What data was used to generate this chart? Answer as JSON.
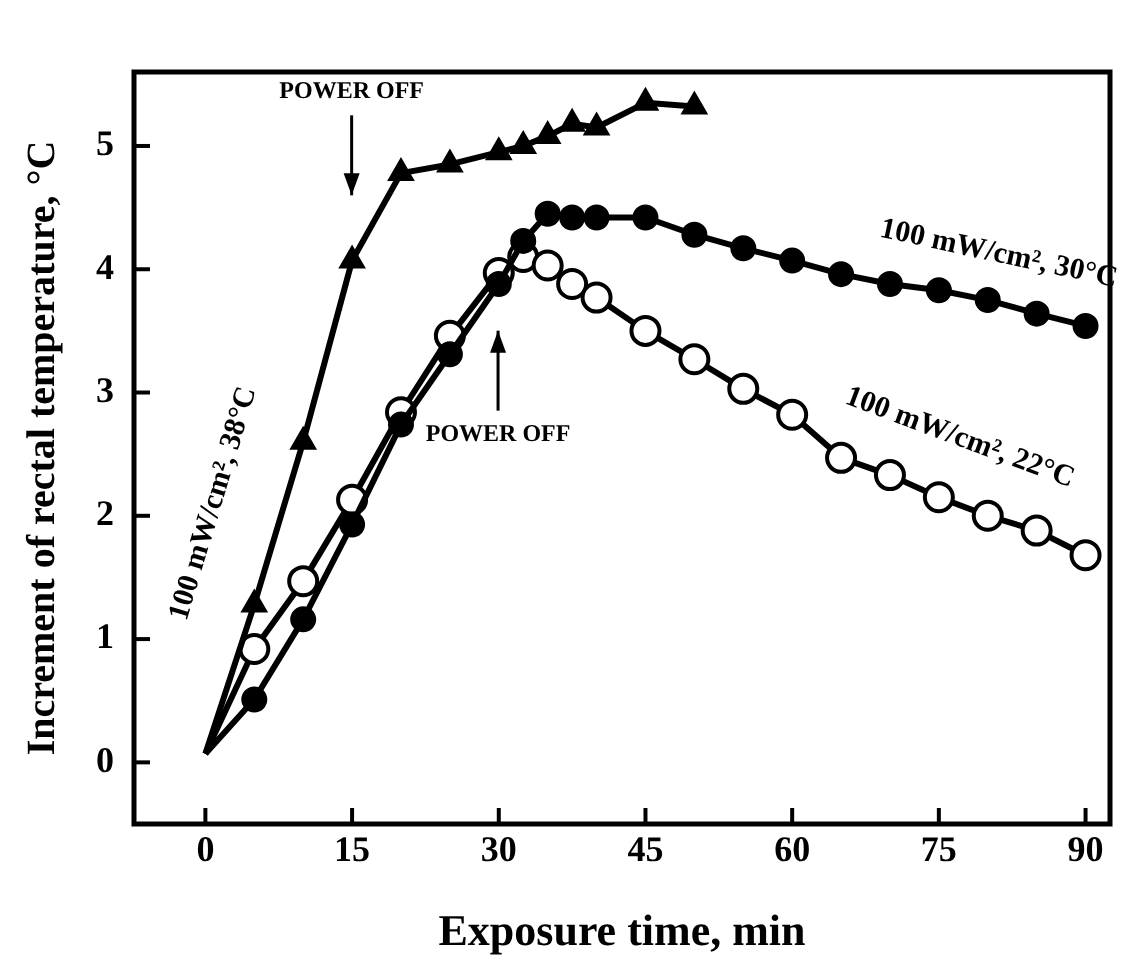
{
  "chart_data": {
    "type": "line",
    "xlabel": "Exposure time, min",
    "ylabel": "Increment of rectal temperature, °C",
    "xlim": [
      -7.3,
      92.5
    ],
    "xticks": [
      0,
      15,
      30,
      45,
      60,
      75,
      90
    ],
    "ylim": [
      -0.5,
      5.6
    ],
    "yticks": [
      0,
      1,
      2,
      3,
      4,
      5
    ],
    "grid": false,
    "legend": false,
    "line_style": "solid",
    "series": [
      {
        "name": "100 mW/cm², 38°C",
        "color": "#000000",
        "marker": "triangle",
        "x": [
          0,
          5,
          10,
          15,
          20,
          25,
          30,
          32.5,
          35,
          37.5,
          40,
          45,
          50
        ],
        "values": [
          0.07,
          1.28,
          2.6,
          4.07,
          4.78,
          4.85,
          4.95,
          5.0,
          5.08,
          5.18,
          5.15,
          5.35,
          5.32
        ]
      },
      {
        "name": "100 mW/cm², 30°C",
        "color": "#000000",
        "marker": "circle",
        "x": [
          0,
          5,
          10,
          15,
          20,
          25,
          30,
          32.5,
          35,
          37.5,
          40,
          45,
          50,
          55,
          60,
          65,
          70,
          75,
          80,
          85,
          90
        ],
        "values": [
          0.07,
          0.51,
          1.16,
          1.93,
          2.74,
          3.31,
          3.88,
          4.23,
          4.45,
          4.42,
          4.42,
          4.42,
          4.28,
          4.17,
          4.07,
          3.96,
          3.88,
          3.83,
          3.75,
          3.64,
          3.54
        ]
      },
      {
        "name": "100 mW/cm², 22°C",
        "color": "#000000",
        "marker": "circle",
        "x": [
          0,
          5,
          10,
          15,
          20,
          25,
          30,
          32.5,
          35,
          37.5,
          40,
          45,
          50,
          55,
          60,
          65,
          70,
          75,
          80,
          85,
          90
        ],
        "values": [
          0.07,
          0.92,
          1.47,
          2.13,
          2.84,
          3.46,
          3.97,
          4.1,
          4.03,
          3.88,
          3.77,
          3.5,
          3.27,
          3.03,
          2.82,
          2.47,
          2.33,
          2.15,
          2.0,
          1.88,
          1.68
        ]
      }
    ],
    "annotations": [
      "POWER OFF",
      "POWER OFF"
    ]
  }
}
